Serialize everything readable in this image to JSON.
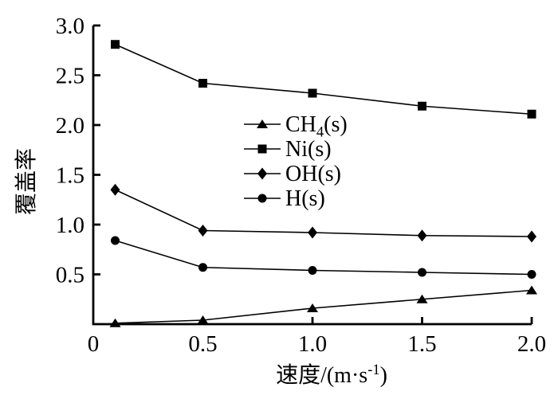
{
  "chart_data": {
    "type": "line",
    "title": "",
    "xlabel": "速度/(m·s⁻¹)",
    "xlabel_parts": [
      {
        "t": "速度/(m·s"
      },
      {
        "t": "-1",
        "sup": true
      },
      {
        "t": ")"
      }
    ],
    "ylabel": "覆盖率",
    "x": [
      0.1,
      0.5,
      1.0,
      1.5,
      2.0
    ],
    "series": [
      {
        "name": "CH₄(s)",
        "label_parts": [
          {
            "t": "CH"
          },
          {
            "t": "4",
            "sub": true
          },
          {
            "t": "(s)"
          }
        ],
        "marker": "triangle",
        "values": [
          0.01,
          0.04,
          0.16,
          0.25,
          0.34
        ]
      },
      {
        "name": "Ni(s)",
        "label_parts": [
          {
            "t": "Ni(s)"
          }
        ],
        "marker": "square",
        "values": [
          2.81,
          2.42,
          2.32,
          2.19,
          2.11
        ]
      },
      {
        "name": "OH(s)",
        "label_parts": [
          {
            "t": "OH(s)"
          }
        ],
        "marker": "diamond",
        "values": [
          1.35,
          0.94,
          0.92,
          0.89,
          0.88
        ]
      },
      {
        "name": "H(s)",
        "label_parts": [
          {
            "t": "H(s)"
          }
        ],
        "marker": "circle",
        "values": [
          0.84,
          0.57,
          0.54,
          0.52,
          0.5
        ]
      }
    ],
    "xlim": [
      0,
      2
    ],
    "ylim": [
      0,
      3
    ],
    "x_ticks": [
      {
        "v": 0,
        "label": "0"
      },
      {
        "v": 0.5,
        "label": "0.5"
      },
      {
        "v": 1,
        "label": "1.0"
      },
      {
        "v": 1.5,
        "label": "1.5"
      },
      {
        "v": 2,
        "label": "2.0"
      }
    ],
    "y_ticks": [
      {
        "v": 0.5,
        "label": "0.5"
      },
      {
        "v": 1,
        "label": "1.0"
      },
      {
        "v": 1.5,
        "label": "1.5"
      },
      {
        "v": 2,
        "label": "2.0"
      },
      {
        "v": 2.5,
        "label": "2.5"
      },
      {
        "v": 3,
        "label": "3.0"
      }
    ],
    "legend_position": "inside-center-left",
    "grid": false,
    "colors": {
      "ink": "#000000",
      "background": "#ffffff"
    }
  }
}
